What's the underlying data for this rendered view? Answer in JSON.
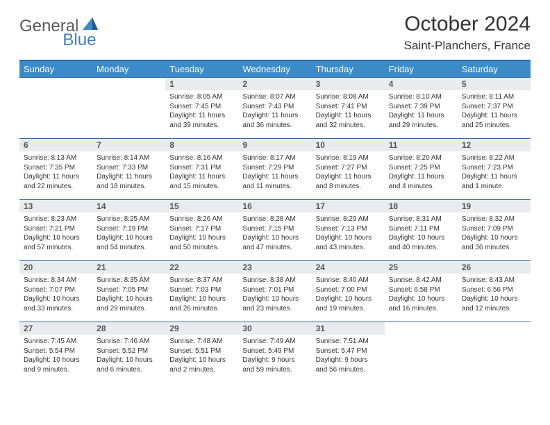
{
  "logo": {
    "general": "General",
    "blue": "Blue"
  },
  "title": {
    "month": "October 2024",
    "location": "Saint-Planchers, France"
  },
  "colors": {
    "header_bg": "#3b8bc9",
    "border": "#2d6aa3",
    "daynum_bg": "#e9ecef"
  },
  "days_of_week": [
    "Sunday",
    "Monday",
    "Tuesday",
    "Wednesday",
    "Thursday",
    "Friday",
    "Saturday"
  ],
  "weeks": [
    [
      null,
      null,
      {
        "n": "1",
        "sr": "8:05 AM",
        "ss": "7:45 PM",
        "dl": "11 hours and 39 minutes."
      },
      {
        "n": "2",
        "sr": "8:07 AM",
        "ss": "7:43 PM",
        "dl": "11 hours and 36 minutes."
      },
      {
        "n": "3",
        "sr": "8:08 AM",
        "ss": "7:41 PM",
        "dl": "11 hours and 32 minutes."
      },
      {
        "n": "4",
        "sr": "8:10 AM",
        "ss": "7:39 PM",
        "dl": "11 hours and 29 minutes."
      },
      {
        "n": "5",
        "sr": "8:11 AM",
        "ss": "7:37 PM",
        "dl": "11 hours and 25 minutes."
      }
    ],
    [
      {
        "n": "6",
        "sr": "8:13 AM",
        "ss": "7:35 PM",
        "dl": "11 hours and 22 minutes."
      },
      {
        "n": "7",
        "sr": "8:14 AM",
        "ss": "7:33 PM",
        "dl": "11 hours and 18 minutes."
      },
      {
        "n": "8",
        "sr": "8:16 AM",
        "ss": "7:31 PM",
        "dl": "11 hours and 15 minutes."
      },
      {
        "n": "9",
        "sr": "8:17 AM",
        "ss": "7:29 PM",
        "dl": "11 hours and 11 minutes."
      },
      {
        "n": "10",
        "sr": "8:19 AM",
        "ss": "7:27 PM",
        "dl": "11 hours and 8 minutes."
      },
      {
        "n": "11",
        "sr": "8:20 AM",
        "ss": "7:25 PM",
        "dl": "11 hours and 4 minutes."
      },
      {
        "n": "12",
        "sr": "8:22 AM",
        "ss": "7:23 PM",
        "dl": "11 hours and 1 minute."
      }
    ],
    [
      {
        "n": "13",
        "sr": "8:23 AM",
        "ss": "7:21 PM",
        "dl": "10 hours and 57 minutes."
      },
      {
        "n": "14",
        "sr": "8:25 AM",
        "ss": "7:19 PM",
        "dl": "10 hours and 54 minutes."
      },
      {
        "n": "15",
        "sr": "8:26 AM",
        "ss": "7:17 PM",
        "dl": "10 hours and 50 minutes."
      },
      {
        "n": "16",
        "sr": "8:28 AM",
        "ss": "7:15 PM",
        "dl": "10 hours and 47 minutes."
      },
      {
        "n": "17",
        "sr": "8:29 AM",
        "ss": "7:13 PM",
        "dl": "10 hours and 43 minutes."
      },
      {
        "n": "18",
        "sr": "8:31 AM",
        "ss": "7:11 PM",
        "dl": "10 hours and 40 minutes."
      },
      {
        "n": "19",
        "sr": "8:32 AM",
        "ss": "7:09 PM",
        "dl": "10 hours and 36 minutes."
      }
    ],
    [
      {
        "n": "20",
        "sr": "8:34 AM",
        "ss": "7:07 PM",
        "dl": "10 hours and 33 minutes."
      },
      {
        "n": "21",
        "sr": "8:35 AM",
        "ss": "7:05 PM",
        "dl": "10 hours and 29 minutes."
      },
      {
        "n": "22",
        "sr": "8:37 AM",
        "ss": "7:03 PM",
        "dl": "10 hours and 26 minutes."
      },
      {
        "n": "23",
        "sr": "8:38 AM",
        "ss": "7:01 PM",
        "dl": "10 hours and 23 minutes."
      },
      {
        "n": "24",
        "sr": "8:40 AM",
        "ss": "7:00 PM",
        "dl": "10 hours and 19 minutes."
      },
      {
        "n": "25",
        "sr": "8:42 AM",
        "ss": "6:58 PM",
        "dl": "10 hours and 16 minutes."
      },
      {
        "n": "26",
        "sr": "8:43 AM",
        "ss": "6:56 PM",
        "dl": "10 hours and 12 minutes."
      }
    ],
    [
      {
        "n": "27",
        "sr": "7:45 AM",
        "ss": "5:54 PM",
        "dl": "10 hours and 9 minutes."
      },
      {
        "n": "28",
        "sr": "7:46 AM",
        "ss": "5:52 PM",
        "dl": "10 hours and 6 minutes."
      },
      {
        "n": "29",
        "sr": "7:48 AM",
        "ss": "5:51 PM",
        "dl": "10 hours and 2 minutes."
      },
      {
        "n": "30",
        "sr": "7:49 AM",
        "ss": "5:49 PM",
        "dl": "9 hours and 59 minutes."
      },
      {
        "n": "31",
        "sr": "7:51 AM",
        "ss": "5:47 PM",
        "dl": "9 hours and 56 minutes."
      },
      null,
      null
    ]
  ],
  "labels": {
    "sunrise": "Sunrise:",
    "sunset": "Sunset:",
    "daylight": "Daylight:"
  }
}
